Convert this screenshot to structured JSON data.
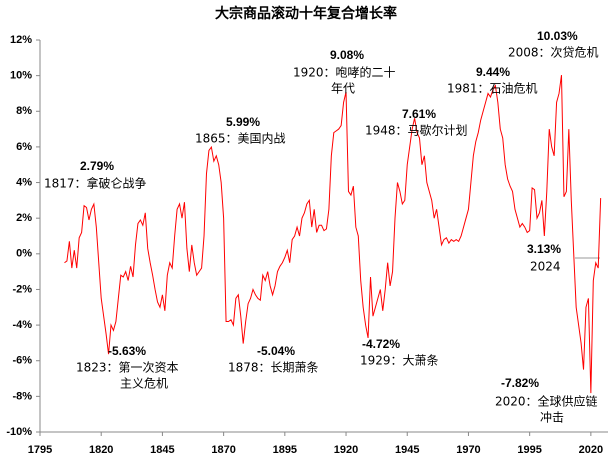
{
  "chart_data": {
    "type": "line",
    "title": "大宗商品滚动十年复合增长率",
    "x": [
      1805,
      1806,
      1807,
      1808,
      1809,
      1810,
      1811,
      1812,
      1813,
      1814,
      1815,
      1816,
      1817,
      1818,
      1819,
      1820,
      1821,
      1822,
      1823,
      1824,
      1825,
      1826,
      1827,
      1828,
      1829,
      1830,
      1831,
      1832,
      1833,
      1834,
      1835,
      1836,
      1837,
      1838,
      1839,
      1840,
      1841,
      1842,
      1843,
      1844,
      1845,
      1846,
      1847,
      1848,
      1849,
      1850,
      1851,
      1852,
      1853,
      1854,
      1855,
      1856,
      1857,
      1858,
      1859,
      1860,
      1861,
      1862,
      1863,
      1864,
      1865,
      1866,
      1867,
      1868,
      1869,
      1870,
      1871,
      1872,
      1873,
      1874,
      1875,
      1876,
      1877,
      1878,
      1879,
      1880,
      1881,
      1882,
      1883,
      1884,
      1885,
      1886,
      1887,
      1888,
      1889,
      1890,
      1891,
      1892,
      1893,
      1894,
      1895,
      1896,
      1897,
      1898,
      1899,
      1900,
      1901,
      1902,
      1903,
      1904,
      1905,
      1906,
      1907,
      1908,
      1909,
      1910,
      1911,
      1912,
      1913,
      1914,
      1915,
      1916,
      1917,
      1918,
      1919,
      1920,
      1921,
      1922,
      1923,
      1924,
      1925,
      1926,
      1927,
      1928,
      1929,
      1930,
      1931,
      1932,
      1933,
      1934,
      1935,
      1936,
      1937,
      1938,
      1939,
      1940,
      1941,
      1942,
      1943,
      1944,
      1945,
      1946,
      1947,
      1948,
      1949,
      1950,
      1951,
      1952,
      1953,
      1954,
      1955,
      1956,
      1957,
      1958,
      1959,
      1960,
      1961,
      1962,
      1963,
      1964,
      1965,
      1966,
      1967,
      1968,
      1969,
      1970,
      1971,
      1972,
      1973,
      1974,
      1975,
      1976,
      1977,
      1978,
      1979,
      1980,
      1981,
      1982,
      1983,
      1984,
      1985,
      1986,
      1987,
      1988,
      1989,
      1990,
      1991,
      1992,
      1993,
      1994,
      1995,
      1996,
      1997,
      1998,
      1999,
      2000,
      2001,
      2002,
      2003,
      2004,
      2005,
      2006,
      2007,
      2008,
      2009,
      2010,
      2011,
      2012,
      2013,
      2014,
      2015,
      2016,
      2017,
      2018,
      2019,
      2020,
      2021,
      2022,
      2023,
      2024
    ],
    "series": [
      {
        "color": "#ff0000",
        "values": [
          -0.5,
          -0.4,
          0.7,
          -0.8,
          0.2,
          -0.8,
          0.9,
          1.2,
          2.7,
          2.6,
          1.9,
          2.5,
          2.79,
          1.5,
          -0.5,
          -2.5,
          -3.5,
          -4.5,
          -5.63,
          -4,
          -4.3,
          -3.8,
          -2.5,
          -1.2,
          -1.3,
          -1.0,
          -1.5,
          -0.7,
          -1.3,
          0.5,
          1.7,
          1.9,
          1.6,
          2.3,
          0.3,
          -0.5,
          -1.2,
          -2.0,
          -2.7,
          -3.0,
          -2.3,
          -3.2,
          -1.2,
          -0.5,
          -0.8,
          1.0,
          2.5,
          2.8,
          2.0,
          2.9,
          0.3,
          -1.0,
          0.5,
          -0.5,
          -1.2,
          -1.0,
          -0.8,
          1.0,
          4.5,
          5.8,
          5.99,
          5.2,
          5.5,
          5.0,
          4.0,
          2.0,
          -3.8,
          -3.8,
          -3.7,
          -4.0,
          -2.5,
          -2.3,
          -3.5,
          -5.04,
          -3.8,
          -2.8,
          -2.5,
          -2.0,
          -2.3,
          -2.5,
          -2.6,
          -1.2,
          -1.5,
          -1.0,
          -1.8,
          -2.3,
          -1.8,
          -1.0,
          -0.7,
          -0.5,
          -0.2,
          0.2,
          -0.5,
          0.8,
          1.0,
          1.5,
          1.0,
          2.0,
          2.3,
          2.8,
          3.0,
          1.5,
          2.5,
          1.2,
          1.6,
          1.6,
          1.3,
          1.4,
          2.5,
          5.5,
          6.8,
          6.9,
          7.0,
          7.2,
          8.5,
          9.08,
          3.5,
          3.3,
          3.8,
          1.5,
          1.0,
          -1.5,
          -3.0,
          -4.0,
          -4.72,
          -1.3,
          -3.5,
          -3.0,
          -2.5,
          -2.0,
          -3.2,
          -2.0,
          -0.5,
          -1.8,
          -1.0,
          2.0,
          4.0,
          3.5,
          2.8,
          3.0,
          5.0,
          6.0,
          7.0,
          7.61,
          6.8,
          6.5,
          5.0,
          5.5,
          4.0,
          3.5,
          3.0,
          2.0,
          2.5,
          1.5,
          0.5,
          0.8,
          0.9,
          0.6,
          0.8,
          0.7,
          0.8,
          0.7,
          1.0,
          1.5,
          2.0,
          2.5,
          4.0,
          5.5,
          6.3,
          6.8,
          7.5,
          8.0,
          8.5,
          9.0,
          8.8,
          9.2,
          9.44,
          8.5,
          7.0,
          6.5,
          5.0,
          4.2,
          3.8,
          3.5,
          2.5,
          2.0,
          1.5,
          1.7,
          1.5,
          1.2,
          1.3,
          3.7,
          3.6,
          2.0,
          2.3,
          3.0,
          1.0,
          3.5,
          7.0,
          6.0,
          5.5,
          8.5,
          9.0,
          10.03,
          3.2,
          3.5,
          7.0,
          3.0,
          0.0,
          -3.0,
          -4.0,
          -5.0,
          -6.5,
          -3.0,
          -2.5,
          -7.82,
          -1.5,
          -0.5,
          -0.8,
          3.13
        ]
      }
    ],
    "xlim": [
      1795,
      2027
    ],
    "xticks": [
      1795,
      1820,
      1845,
      1870,
      1895,
      1920,
      1945,
      1970,
      1995,
      2020
    ],
    "ylim": [
      -10,
      12
    ],
    "yticks": [
      {
        "value": -10,
        "label": "-10%"
      },
      {
        "value": -8,
        "label": "-8%"
      },
      {
        "value": -6,
        "label": "-6%"
      },
      {
        "value": -4,
        "label": "-4%"
      },
      {
        "value": -2,
        "label": "-2%"
      },
      {
        "value": 0,
        "label": "0%"
      },
      {
        "value": 2,
        "label": "2%"
      },
      {
        "value": 4,
        "label": "4%"
      },
      {
        "value": 6,
        "label": "6%"
      },
      {
        "value": 8,
        "label": "8%"
      },
      {
        "value": 10,
        "label": "10%"
      },
      {
        "value": 12,
        "label": "12%"
      }
    ],
    "grid": false,
    "annotations": [
      {
        "x": 1817,
        "y": 2.79,
        "label": "2.79%",
        "text": [
          "1817：拿破仑战争"
        ]
      },
      {
        "x": 1823,
        "y": -5.63,
        "label": "-5.63%",
        "text": [
          "1823：第一次资本",
          "主义危机"
        ]
      },
      {
        "x": 1865,
        "y": 5.99,
        "label": "5.99%",
        "text": [
          "1865：美国内战"
        ]
      },
      {
        "x": 1878,
        "y": -5.04,
        "label": "-5.04%",
        "text": [
          "1878：长期萧条"
        ]
      },
      {
        "x": 1920,
        "y": 9.08,
        "label": "9.08%",
        "text": [
          "1920：咆哮的二十",
          "年代"
        ]
      },
      {
        "x": 1929,
        "y": -4.72,
        "label": "-4.72%",
        "text": [
          "1929：大萧条"
        ]
      },
      {
        "x": 1948,
        "y": 7.61,
        "label": "7.61%",
        "text": [
          "1948：马歇尔计划"
        ]
      },
      {
        "x": 1981,
        "y": 9.44,
        "label": "9.44%",
        "text": [
          "1981：石油危机"
        ]
      },
      {
        "x": 2008,
        "y": 10.03,
        "label": "10.03%",
        "text": [
          "2008：次贷危机"
        ]
      },
      {
        "x": 2024,
        "y": 3.13,
        "label": "3.13%",
        "text": [
          "2024"
        ]
      },
      {
        "x": 2020,
        "y": -7.82,
        "label": "-7.82%",
        "text": [
          "2020：全球供应链",
          "冲击"
        ]
      }
    ]
  }
}
